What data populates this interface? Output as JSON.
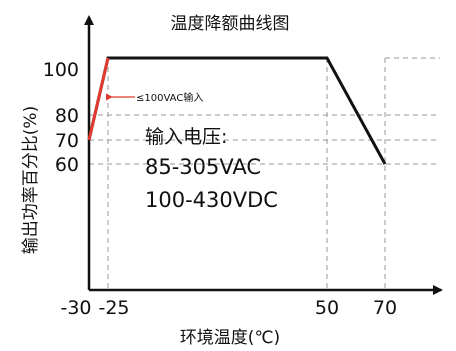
{
  "chart_data": {
    "type": "line",
    "title": "温度降额曲线图",
    "xlabel": "环境温度(℃)",
    "ylabel": "输出功率百分比(%)",
    "x_ticks": [
      "-30",
      "-25",
      "50",
      "70"
    ],
    "y_ticks": [
      "100",
      "80",
      "70",
      "60"
    ],
    "xlim": [
      -30,
      90
    ],
    "ylim": [
      0,
      110
    ],
    "series": [
      {
        "name": "",
        "points": [
          [
            -30,
            70
          ],
          [
            -25,
            100
          ],
          [
            50,
            100
          ],
          [
            70,
            60
          ]
        ],
        "color": "#111111",
        "highlight_segment": {
          "from": [
            -30,
            70
          ],
          "to": [
            -25,
            100
          ],
          "color": "#e23a2e"
        }
      }
    ],
    "annotations": {
      "low_voltage_note": "≤100VAC输入",
      "input_label": "输入电压:",
      "input_range_ac": "85-305VAC",
      "input_range_dc": "100-430VDC"
    },
    "grid": "dashed"
  }
}
